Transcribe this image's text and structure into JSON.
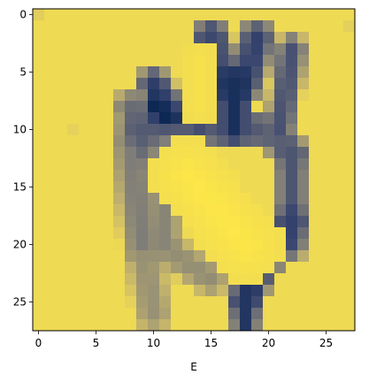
{
  "chart_data": {
    "type": "heatmap",
    "title": "",
    "xlabel": "E",
    "ylabel": "",
    "colormap": "cividis",
    "colormap_endpoints": {
      "low": "#00204c",
      "mid": "#7c7b78",
      "high": "#ffe945"
    },
    "value_range": [
      0,
      255
    ],
    "grid": false,
    "xlim": [
      -0.5,
      27.5
    ],
    "ylim": [
      27.5,
      -0.5
    ],
    "x_ticks": [
      0,
      5,
      10,
      15,
      20,
      25
    ],
    "y_ticks": [
      0,
      5,
      10,
      15,
      20,
      25
    ],
    "x_tick_labels": [
      "0",
      "5",
      "10",
      "15",
      "20",
      "25"
    ],
    "y_tick_labels": [
      "0",
      "5",
      "10",
      "15",
      "20",
      "25"
    ],
    "rows": 28,
    "cols": 28,
    "base_value": 238,
    "background_features": [
      {
        "row": 0,
        "col": 0,
        "value": 225
      },
      {
        "row": 1,
        "col": 27,
        "value": 228
      },
      {
        "row": 10,
        "col": 3,
        "value": 230
      }
    ],
    "strokes": [
      [
        2,
        15,
        6,
        16,
        70,
        2.0
      ],
      [
        2,
        19,
        6,
        18,
        60,
        2.0
      ],
      [
        6,
        17,
        10,
        17,
        30,
        2.0
      ],
      [
        3,
        22,
        10,
        21,
        80,
        1.6
      ],
      [
        2,
        15,
        10,
        14,
        75,
        1.6
      ],
      [
        6,
        10,
        9,
        12,
        55,
        1.8
      ],
      [
        8,
        10,
        9,
        11,
        15,
        1.4
      ],
      [
        8,
        8,
        12,
        9,
        110,
        1.8
      ],
      [
        10,
        9,
        10,
        19,
        90,
        1.8
      ],
      [
        10,
        19,
        12,
        22,
        100,
        1.6
      ],
      [
        12,
        22,
        20,
        22,
        85,
        1.7
      ],
      [
        18,
        22,
        25,
        18,
        60,
        1.6
      ],
      [
        24,
        18,
        27,
        18,
        40,
        1.4
      ],
      [
        11,
        8,
        20,
        9,
        130,
        2.0
      ],
      [
        20,
        9,
        26,
        10,
        155,
        1.9
      ],
      [
        13,
        11,
        20,
        11,
        140,
        1.6
      ],
      [
        21,
        12,
        23,
        15,
        150,
        1.8
      ]
    ],
    "bright_regions": [
      [
        14,
        13,
        20,
        18,
        252,
        3.2
      ],
      [
        4,
        14,
        8,
        14,
        246,
        1.5
      ]
    ]
  }
}
